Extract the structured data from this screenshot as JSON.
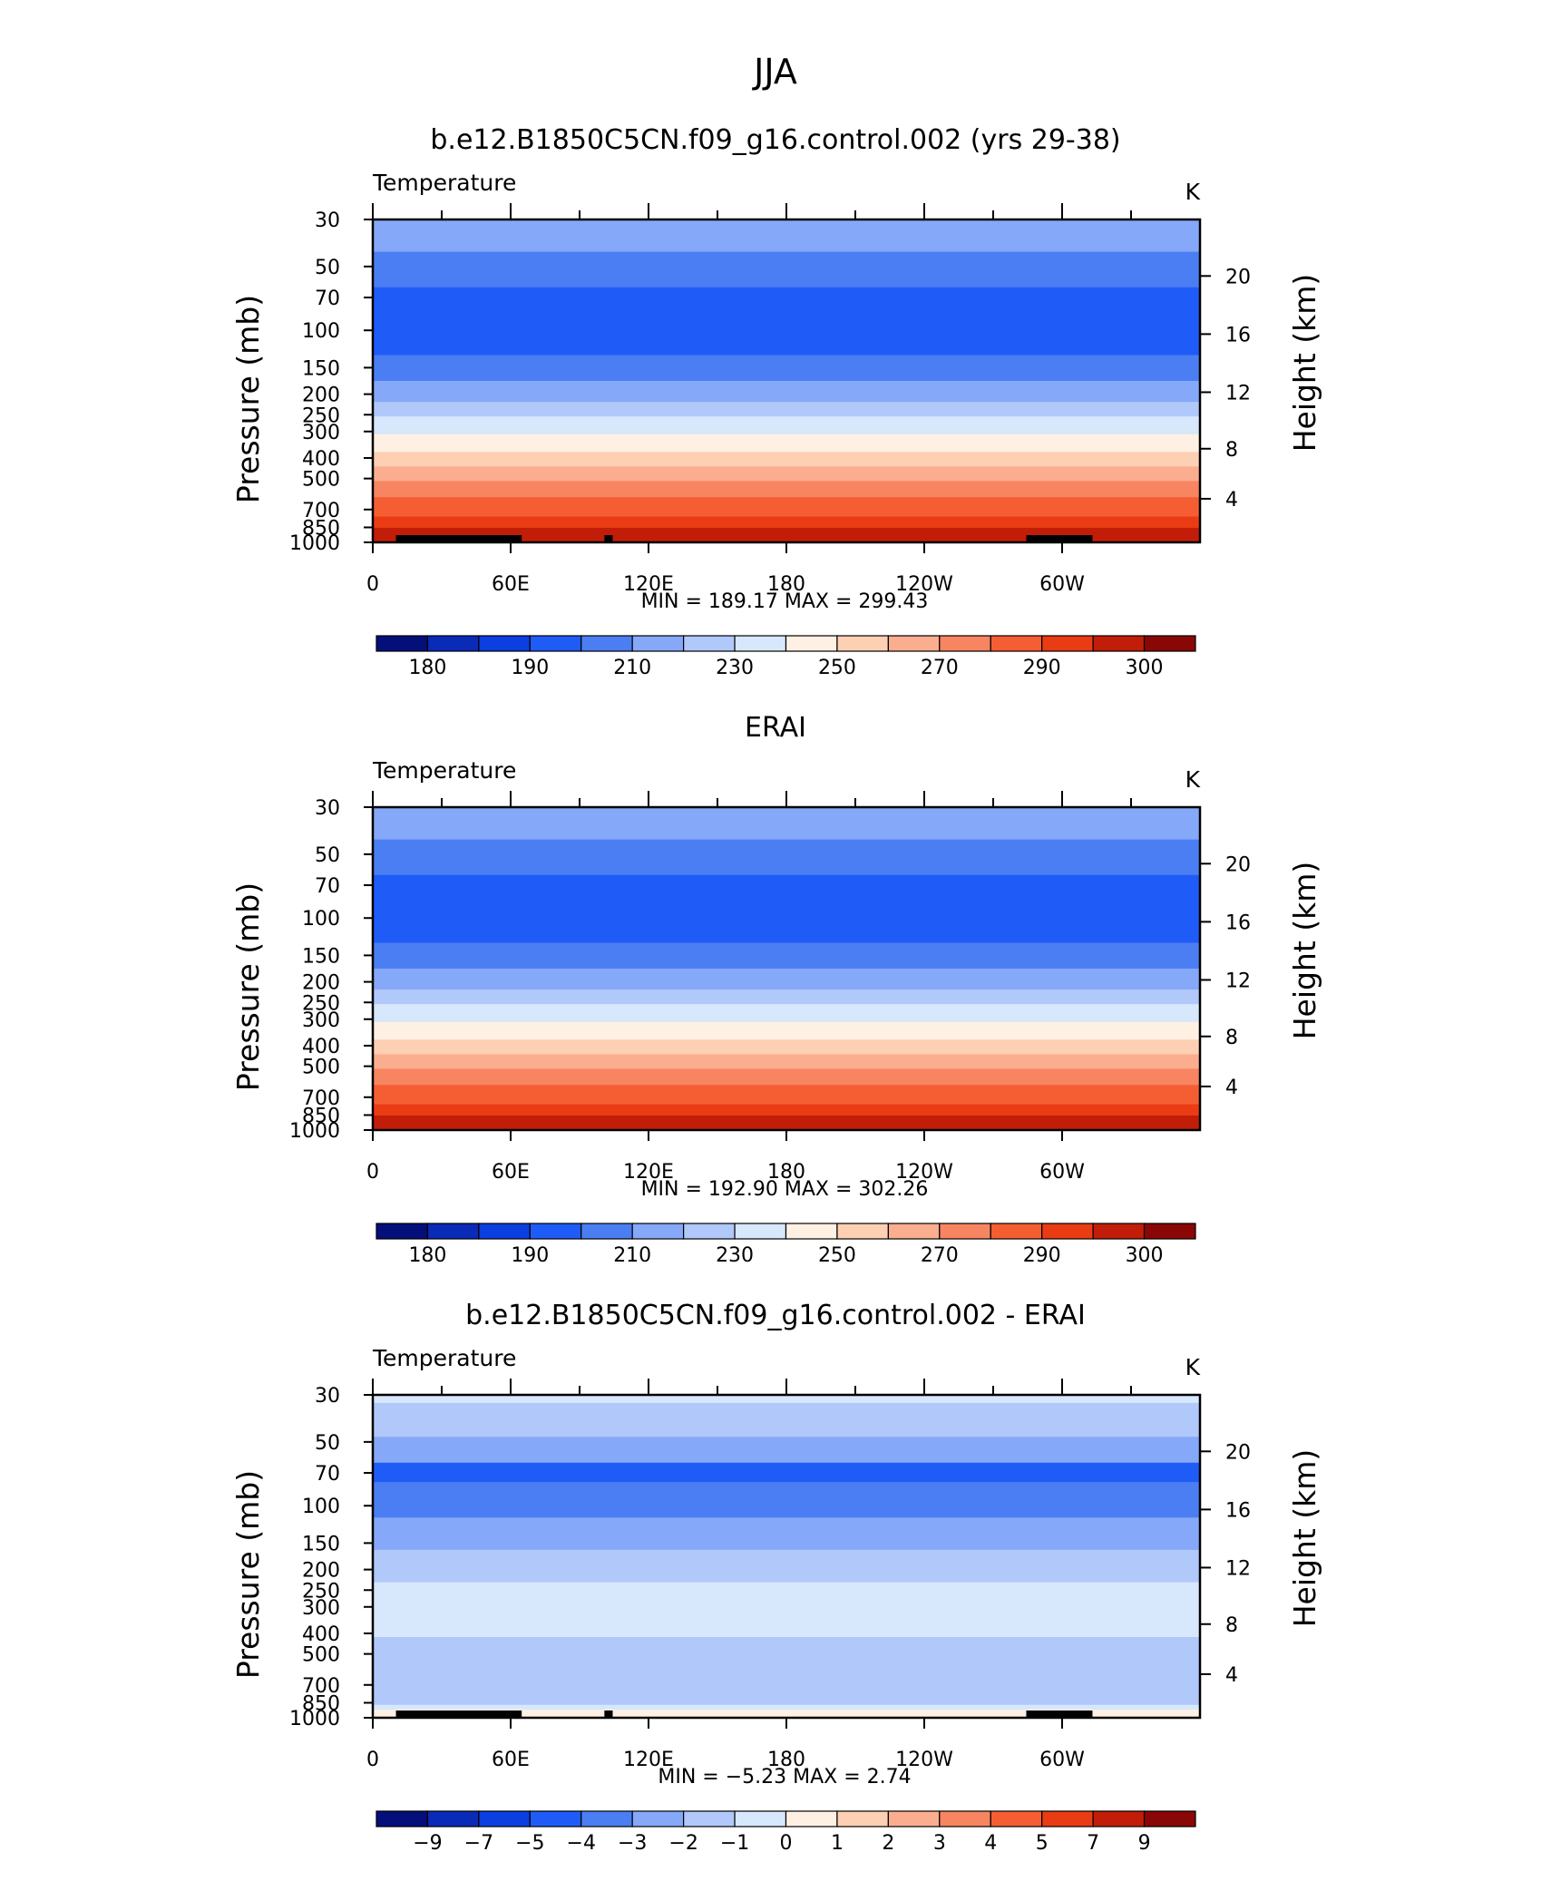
{
  "figure": {
    "title": "JJA"
  },
  "colormap_colors": [
    "#050f7a",
    "#0a2bb8",
    "#0c3fe0",
    "#1f5cf7",
    "#4a7ef2",
    "#86a8f8",
    "#b1c8fb",
    "#d7e7fc",
    "#fef0e2",
    "#fdd0b4",
    "#fbae8f",
    "#f88561",
    "#f55e33",
    "#ea3c14",
    "#c21d08",
    "#8a0707"
  ],
  "panels": [
    {
      "subtitle": "b.e12.B1850C5CN.f09_g16.control.002 (yrs 29-38)",
      "variable": "Temperature",
      "units": "K",
      "ylabel": "Pressure  (mb)",
      "ylabel_right": "Height  (km)",
      "minmax_text": "MIN =  189.17   MAX =  299.43"
    },
    {
      "subtitle": "ERAI",
      "variable": "Temperature",
      "units": "K",
      "ylabel": "Pressure  (mb)",
      "ylabel_right": "Height  (km)",
      "minmax_text": "MIN =  192.90   MAX =  302.26"
    },
    {
      "subtitle": "b.e12.B1850C5CN.f09_g16.control.002 - ERAI",
      "variable": "Temperature",
      "units": "K",
      "ylabel": "Pressure  (mb)",
      "ylabel_right": "Height  (km)",
      "minmax_text": "MIN =    −5.23   MAX =     2.74"
    }
  ],
  "chart_data": [
    {
      "type": "heatmap",
      "title": "b.e12.B1850C5CN.f09_g16.control.002 (yrs 29-38)",
      "variable": "Temperature",
      "units": "K",
      "x_tick_labels": [
        "0",
        "60E",
        "120E",
        "180",
        "120W",
        "60W"
      ],
      "y_tick_labels": [
        "30",
        "50",
        "70",
        "100",
        "150",
        "200",
        "250",
        "300",
        "400",
        "500",
        "700",
        "850",
        "1000"
      ],
      "y_right_tick_labels": [
        "20",
        "16",
        "12",
        "8",
        "4"
      ],
      "ylabel": "Pressure  (mb)",
      "ylabel_right": "Height  (km)",
      "y_scale": "log",
      "min": 189.17,
      "max": 299.43,
      "colorbar_labels": [
        "180",
        "190",
        "210",
        "230",
        "250",
        "270",
        "290",
        "300"
      ],
      "band_colors": [
        "#86a8f8",
        "#4a7ef2",
        "#1f5cf7",
        "#4a7ef2",
        "#86a8f8",
        "#b1c8fb",
        "#d7e7fc",
        "#fef0e2",
        "#fdd0b4",
        "#fbae8f",
        "#f88561",
        "#f55e33",
        "#ea3c14"
      ]
    },
    {
      "type": "heatmap",
      "title": "ERAI",
      "variable": "Temperature",
      "units": "K",
      "x_tick_labels": [
        "0",
        "60E",
        "120E",
        "180",
        "120W",
        "60W"
      ],
      "y_tick_labels": [
        "30",
        "50",
        "70",
        "100",
        "150",
        "200",
        "250",
        "300",
        "400",
        "500",
        "700",
        "850",
        "1000"
      ],
      "y_right_tick_labels": [
        "20",
        "16",
        "12",
        "8",
        "4"
      ],
      "ylabel": "Pressure  (mb)",
      "ylabel_right": "Height  (km)",
      "y_scale": "log",
      "min": 192.9,
      "max": 302.26,
      "colorbar_labels": [
        "180",
        "190",
        "210",
        "230",
        "250",
        "270",
        "290",
        "300"
      ],
      "band_colors": [
        "#86a8f8",
        "#4a7ef2",
        "#1f5cf7",
        "#4a7ef2",
        "#86a8f8",
        "#b1c8fb",
        "#d7e7fc",
        "#fef0e2",
        "#fdd0b4",
        "#fbae8f",
        "#f88561",
        "#f55e33",
        "#ea3c14"
      ]
    },
    {
      "type": "heatmap",
      "title": "b.e12.B1850C5CN.f09_g16.control.002 - ERAI",
      "variable": "Temperature",
      "units": "K",
      "x_tick_labels": [
        "0",
        "60E",
        "120E",
        "180",
        "120W",
        "60W"
      ],
      "y_tick_labels": [
        "30",
        "50",
        "70",
        "100",
        "150",
        "200",
        "250",
        "300",
        "400",
        "500",
        "700",
        "850",
        "1000"
      ],
      "y_right_tick_labels": [
        "20",
        "16",
        "12",
        "8",
        "4"
      ],
      "ylabel": "Pressure  (mb)",
      "ylabel_right": "Height  (km)",
      "y_scale": "log",
      "min": -5.23,
      "max": 2.74,
      "colorbar_labels": [
        "−9",
        "−7",
        "−5",
        "−4",
        "−3",
        "−2",
        "−1",
        "0",
        "1",
        "2",
        "3",
        "4",
        "5",
        "7",
        "9"
      ],
      "band_colors": [
        "#d7e7fc",
        "#b1c8fb",
        "#86a8f8",
        "#1f5cf7",
        "#4a7ef2",
        "#86a8f8",
        "#b1c8fb",
        "#d7e7fc",
        "#b1c8fb",
        "#d7e7fc"
      ]
    }
  ]
}
